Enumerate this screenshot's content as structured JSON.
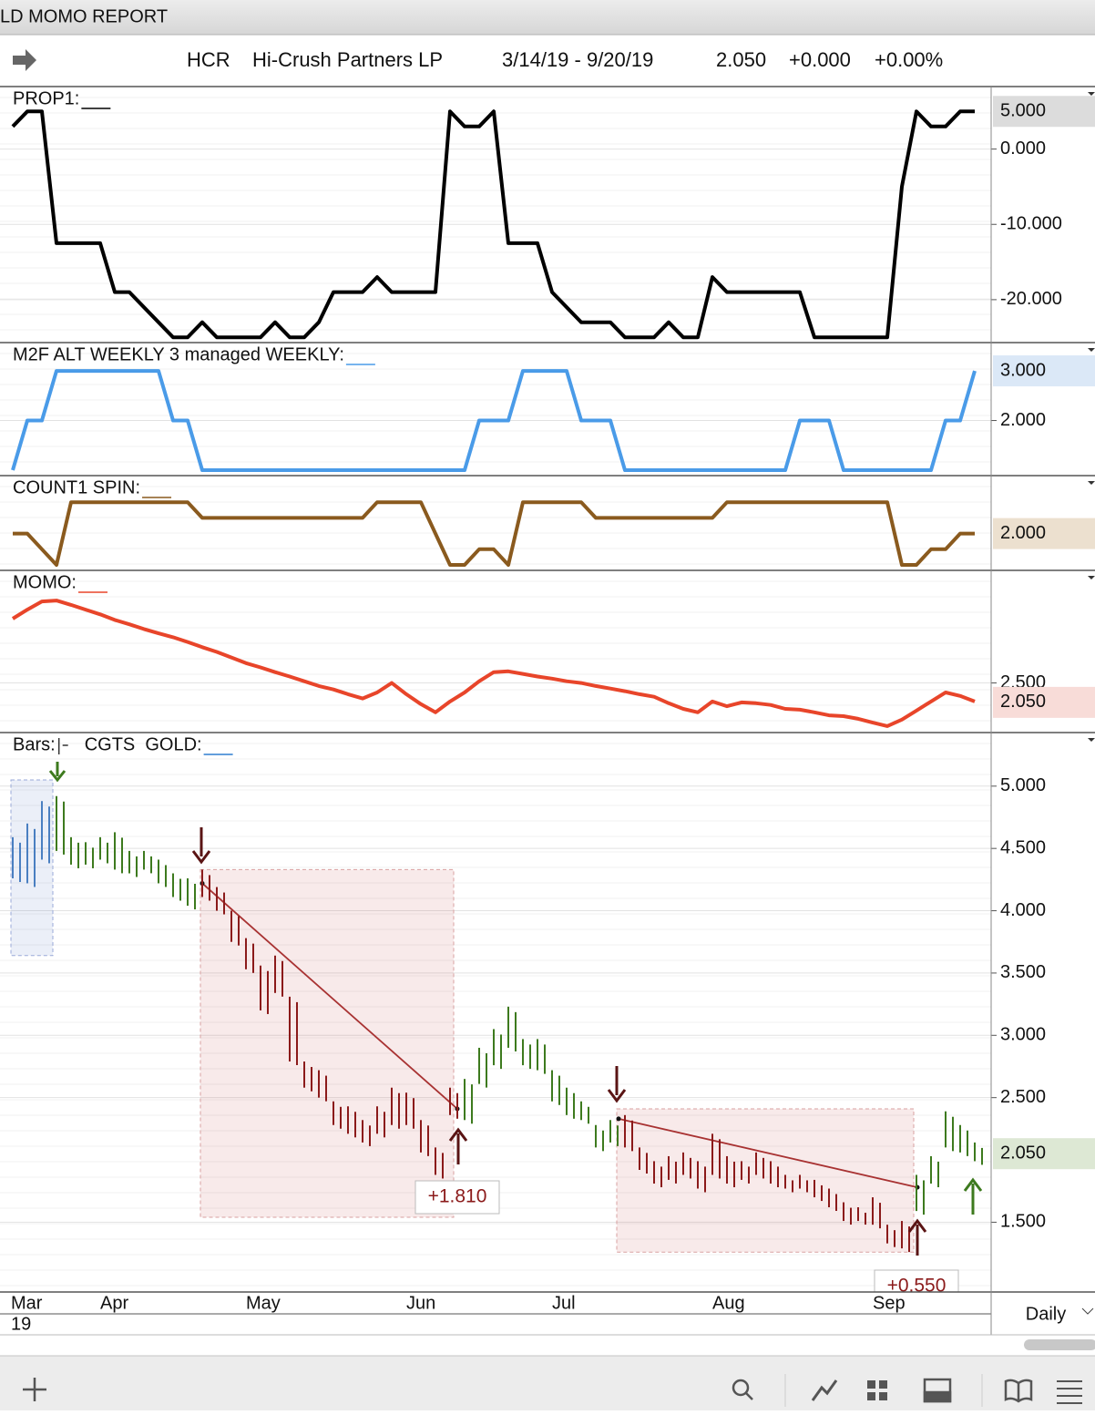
{
  "window_title": "LD MOMO REPORT",
  "header": {
    "symbol": "HCR",
    "name": "Hi-Crush Partners LP",
    "range": "3/14/19 - 9/20/19",
    "price": "2.050",
    "change": "+0.000",
    "percent": "+0.00%"
  },
  "x_axis": {
    "categories": [
      "Mar",
      null,
      null,
      null,
      null,
      null,
      "Apr",
      null,
      null,
      null,
      null,
      null,
      null,
      null,
      null,
      null,
      "May",
      null,
      null,
      null,
      null,
      null,
      null,
      null,
      null,
      null,
      null,
      "Jun",
      null,
      null,
      null,
      null,
      null,
      null,
      null,
      null,
      null,
      "Jul",
      null,
      null,
      null,
      null,
      null,
      null,
      null,
      null,
      null,
      null,
      "Aug",
      null,
      null,
      null,
      null,
      null,
      null,
      null,
      null,
      null,
      null,
      "Sep",
      null,
      null,
      null,
      null,
      null,
      null,
      null
    ],
    "year": "19",
    "interval": "Daily"
  },
  "chart_data": [
    {
      "type": "line",
      "title": "PROP1:",
      "color": "#000000",
      "values": [
        3,
        5,
        5,
        -12.5,
        -12.5,
        -12.5,
        -12.5,
        -19,
        -19,
        -21,
        -23,
        -25,
        -25,
        -23,
        -25,
        -25,
        -25,
        -25,
        -23,
        -25,
        -25,
        -23,
        -19,
        -19,
        -19,
        -17,
        -19,
        -19,
        -19,
        -19,
        5,
        3,
        3,
        5,
        -12.5,
        -12.5,
        -12.5,
        -19,
        -21,
        -23,
        -23,
        -23,
        -25,
        -25,
        -25,
        -23,
        -25,
        -25,
        -17,
        -19,
        -19,
        -19,
        -19,
        -19,
        -19,
        -25,
        -25,
        -25,
        -25,
        -25,
        -25,
        -5,
        5,
        3,
        3,
        5,
        5
      ],
      "ylim": [
        -25.7,
        8.3
      ],
      "yticks": [
        {
          "value": 0,
          "label": "0.000"
        },
        {
          "value": -10,
          "label": "-10.000"
        },
        {
          "value": -20,
          "label": "-20.000"
        }
      ],
      "last_value": {
        "value": 5,
        "label": "5.000"
      },
      "last_color": "#dcdcdc"
    },
    {
      "type": "line",
      "title": "M2F ALT WEEKLY 3 managed WEEKLY:",
      "color": "#4a9be8",
      "values": [
        1,
        2,
        2,
        3,
        3,
        3,
        3,
        3,
        3,
        3,
        3,
        2,
        2,
        1,
        1,
        1,
        1,
        1,
        1,
        1,
        1,
        1,
        1,
        1,
        1,
        1,
        1,
        1,
        1,
        1,
        1,
        1,
        2,
        2,
        2,
        3,
        3,
        3,
        3,
        2,
        2,
        2,
        1,
        1,
        1,
        1,
        1,
        1,
        1,
        1,
        1,
        1,
        1,
        1,
        2,
        2,
        2,
        1,
        1,
        1,
        1,
        1,
        1,
        1,
        2,
        2,
        3
      ],
      "ylim": [
        0.89,
        3.57
      ],
      "yticks": [
        {
          "value": 2,
          "label": "2.000"
        }
      ],
      "last_value": {
        "value": 3,
        "label": "3.000"
      },
      "last_color": "#dbe8f7"
    },
    {
      "type": "line",
      "title": "COUNT1 SPIN:",
      "color": "#8a5a1e",
      "values": [
        2,
        2,
        1,
        0,
        4,
        4,
        4,
        4,
        4,
        4,
        4,
        4,
        4,
        3,
        3,
        3,
        3,
        3,
        3,
        3,
        3,
        3,
        3,
        3,
        3,
        4,
        4,
        4,
        4,
        2,
        0,
        0,
        1,
        1,
        0,
        4,
        4,
        4,
        4,
        4,
        3,
        3,
        3,
        3,
        3,
        3,
        3,
        3,
        3,
        4,
        4,
        4,
        4,
        4,
        4,
        4,
        4,
        4,
        4,
        4,
        4,
        0,
        0,
        1,
        1,
        2,
        2
      ],
      "ylim": [
        -0.35,
        5.7
      ],
      "yticks": [],
      "last_value": {
        "value": 2,
        "label": "2.000"
      },
      "last_color": "#ece0cf"
    },
    {
      "type": "line",
      "title": "MOMO:",
      "color": "#e8452a",
      "values": [
        3.99,
        4.2,
        4.39,
        4.41,
        4.31,
        4.2,
        4.09,
        3.96,
        3.86,
        3.75,
        3.65,
        3.56,
        3.45,
        3.33,
        3.22,
        3.09,
        2.96,
        2.86,
        2.75,
        2.65,
        2.54,
        2.43,
        2.35,
        2.24,
        2.14,
        2.28,
        2.5,
        2.24,
        2.01,
        1.82,
        2.07,
        2.28,
        2.54,
        2.75,
        2.77,
        2.71,
        2.65,
        2.6,
        2.54,
        2.5,
        2.43,
        2.37,
        2.31,
        2.24,
        2.18,
        2.03,
        1.9,
        1.82,
        2.07,
        1.96,
        2.05,
        2.03,
        1.99,
        1.9,
        1.88,
        1.82,
        1.75,
        1.73,
        1.67,
        1.58,
        1.5,
        1.65,
        1.86,
        2.07,
        2.28,
        2.2,
        2.07
      ],
      "ylim": [
        1.35,
        5.11
      ],
      "yticks": [
        {
          "value": 2.5,
          "label": "2.500"
        }
      ],
      "last_value": {
        "value": 2.05,
        "label": "2.050"
      },
      "last_color": "#f8dcd8"
    },
    {
      "type": "range_bar",
      "title": "Bars:",
      "subtitle": "CGTS  GOLD:",
      "line_color": "#2f7fd0",
      "high": [
        4.59,
        4.7,
        4.88,
        4.92,
        4.59,
        4.55,
        4.59,
        4.63,
        4.48,
        4.48,
        4.41,
        4.3,
        4.26,
        4.33,
        4.19,
        4.0,
        3.78,
        3.56,
        3.64,
        3.31,
        2.79,
        2.72,
        2.47,
        2.43,
        2.32,
        2.43,
        2.58,
        2.54,
        2.32,
        2.1,
        2.58,
        2.65,
        2.9,
        3.05,
        3.23,
        2.97,
        2.97,
        2.72,
        2.58,
        2.47,
        2.28,
        2.32,
        2.36,
        2.1,
        1.99,
        2.03,
        2.06,
        1.99,
        2.21,
        2.03,
        1.99,
        2.06,
        1.99,
        1.88,
        1.88,
        1.84,
        1.77,
        1.66,
        1.62,
        1.7,
        1.48,
        1.51,
        1.88,
        2.03,
        2.39,
        2.28,
        2.14
      ],
      "low": [
        4.26,
        4.22,
        4.41,
        4.48,
        4.37,
        4.37,
        4.41,
        4.33,
        4.3,
        4.33,
        4.22,
        4.11,
        4.04,
        4.11,
        4.0,
        3.75,
        3.53,
        3.2,
        3.34,
        2.79,
        2.58,
        2.5,
        2.28,
        2.21,
        2.14,
        2.21,
        2.28,
        2.28,
        2.06,
        1.88,
        2.36,
        2.32,
        2.61,
        2.76,
        2.9,
        2.76,
        2.72,
        2.47,
        2.36,
        2.32,
        2.1,
        2.14,
        2.1,
        1.92,
        1.81,
        1.84,
        1.88,
        1.77,
        1.88,
        1.81,
        1.84,
        1.88,
        1.81,
        1.77,
        1.77,
        1.7,
        1.62,
        1.51,
        1.51,
        1.48,
        1.33,
        1.29,
        1.59,
        1.81,
        2.1,
        2.06,
        1.99
      ],
      "colors": [
        "#4a7fc1",
        "#4a7fc1",
        "#4a7fc1",
        "#3d7a1e",
        "#3d7a1e",
        "#3d7a1e",
        "#3d7a1e",
        "#3d7a1e",
        "#3d7a1e",
        "#3d7a1e",
        "#3d7a1e",
        "#3d7a1e",
        "#3d7a1e",
        "#8b1a1a",
        "#8b1a1a",
        "#8b1a1a",
        "#8b1a1a",
        "#8b1a1a",
        "#8b1a1a",
        "#8b1a1a",
        "#8b1a1a",
        "#8b1a1a",
        "#8b1a1a",
        "#8b1a1a",
        "#8b1a1a",
        "#8b1a1a",
        "#8b1a1a",
        "#8b1a1a",
        "#8b1a1a",
        "#8b1a1a",
        "#8b1a1a",
        "#3d7a1e",
        "#3d7a1e",
        "#3d7a1e",
        "#3d7a1e",
        "#3d7a1e",
        "#3d7a1e",
        "#3d7a1e",
        "#3d7a1e",
        "#3d7a1e",
        "#3d7a1e",
        "#3d7a1e",
        "#8b1a1a",
        "#8b1a1a",
        "#8b1a1a",
        "#8b1a1a",
        "#8b1a1a",
        "#8b1a1a",
        "#8b1a1a",
        "#8b1a1a",
        "#8b1a1a",
        "#8b1a1a",
        "#8b1a1a",
        "#8b1a1a",
        "#8b1a1a",
        "#8b1a1a",
        "#8b1a1a",
        "#8b1a1a",
        "#8b1a1a",
        "#8b1a1a",
        "#8b1a1a",
        "#8b1a1a",
        "#3d7a1e",
        "#3d7a1e",
        "#3d7a1e",
        "#3d7a1e",
        "#3d7a1e"
      ],
      "setup_box": {
        "box_top": 5.05,
        "box_bottom": 3.64
      },
      "trades": [
        {
          "label": "+1.810",
          "box_top": 4.33,
          "box_bottom": 1.54,
          "entry": 4.22,
          "exit": 2.41
        },
        {
          "label": "+0.550",
          "box_top": 2.41,
          "box_bottom": 1.26,
          "entry": 2.33,
          "exit": 1.78
        }
      ],
      "ylim": [
        0.94,
        5.43
      ],
      "yticks": [
        {
          "value": 5,
          "label": "5.000"
        },
        {
          "value": 4.5,
          "label": "4.500"
        },
        {
          "value": 4,
          "label": "4.000"
        },
        {
          "value": 3.5,
          "label": "3.500"
        },
        {
          "value": 3,
          "label": "3.000"
        },
        {
          "value": 2.5,
          "label": "2.500"
        },
        {
          "value": 1.5,
          "label": "1.500"
        }
      ],
      "last_value": {
        "value": 2.05,
        "label": "2.050"
      },
      "last_color": "#dde8d4"
    }
  ]
}
